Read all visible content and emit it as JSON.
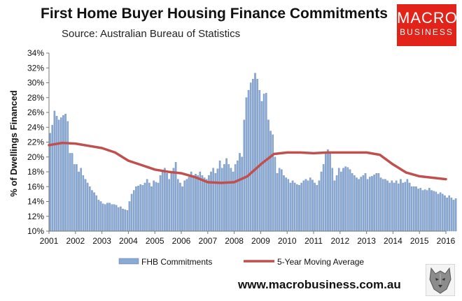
{
  "header": {
    "title": "First Home Buyer Housing Finance Commitments",
    "subtitle": "Source: Australian Bureau of Statistics"
  },
  "logo": {
    "line1": "MACRO",
    "line2": "BUSINESS"
  },
  "footer": {
    "url": "www.macrobusiness.com.au"
  },
  "colors": {
    "bar": "#8aa9d3",
    "bar_edge": "#5b7fb0",
    "line": "#c0504d",
    "logo_bg": "#e2231a"
  },
  "icons": {
    "mascot": "wolf-icon"
  },
  "chart_data": {
    "type": "bar",
    "title": "First Home Buyer Housing Finance Commitments",
    "ylabel": "% of Dwellings Financed",
    "ylim": [
      10,
      34
    ],
    "yticks": [
      "10%",
      "12%",
      "14%",
      "16%",
      "18%",
      "20%",
      "22%",
      "24%",
      "26%",
      "28%",
      "30%",
      "32%",
      "34%"
    ],
    "xticks": [
      "2001",
      "2002",
      "2003",
      "2004",
      "2005",
      "2006",
      "2007",
      "2008",
      "2009",
      "2010",
      "2011",
      "2012",
      "2013",
      "2014",
      "2015",
      "2016"
    ],
    "legend": {
      "placement": "bottom"
    },
    "series": [
      {
        "name": "FHB Commitments",
        "type": "bar",
        "frequency": "monthly",
        "start": "2001-01",
        "values": [
          23.2,
          24.3,
          26.2,
          25.5,
          25.0,
          25.3,
          25.6,
          25.8,
          24.8,
          20.5,
          20.5,
          19.0,
          19.0,
          18.0,
          18.5,
          17.5,
          17.0,
          16.5,
          16.0,
          15.5,
          15.2,
          14.8,
          14.2,
          14.0,
          13.7,
          13.6,
          13.8,
          13.8,
          13.6,
          13.6,
          13.5,
          13.2,
          13.3,
          13.0,
          12.9,
          12.8,
          14.0,
          15.0,
          15.5,
          16.0,
          16.1,
          16.3,
          16.2,
          16.5,
          17.0,
          16.5,
          16.0,
          16.8,
          16.6,
          16.5,
          17.5,
          18.0,
          18.5,
          17.8,
          17.0,
          18.0,
          18.5,
          19.3,
          17.0,
          16.5,
          16.0,
          16.8,
          17.0,
          17.3,
          18.0,
          17.5,
          17.7,
          17.5,
          18.0,
          17.5,
          17.2,
          17.0,
          17.5,
          18.0,
          18.5,
          17.8,
          18.4,
          19.5,
          18.5,
          19.0,
          19.8,
          19.0,
          18.5,
          18.0,
          19.0,
          19.5,
          20.5,
          20.0,
          25.0,
          28.0,
          29.0,
          30.0,
          30.5,
          31.3,
          30.5,
          29.0,
          27.5,
          28.5,
          28.6,
          25.0,
          23.5,
          23.0,
          20.0,
          17.8,
          18.5,
          18.3,
          17.5,
          17.2,
          17.0,
          16.5,
          16.8,
          16.5,
          16.3,
          16.2,
          16.5,
          16.8,
          17.0,
          16.8,
          17.2,
          16.9,
          16.5,
          16.2,
          16.8,
          18.0,
          19.0,
          20.5,
          21.0,
          20.5,
          18.5,
          16.8,
          17.5,
          18.5,
          18.0,
          18.5,
          18.7,
          18.6,
          18.3,
          17.8,
          17.5,
          17.2,
          17.0,
          17.3,
          17.5,
          17.8,
          17.0,
          17.3,
          17.4,
          17.6,
          17.8,
          17.8,
          17.2,
          17.0,
          17.0,
          16.8,
          16.5,
          16.8,
          16.5,
          16.8,
          16.4,
          17.0,
          16.5,
          16.6,
          17.0,
          16.5,
          16.0,
          16.0,
          16.0,
          15.7,
          15.8,
          15.5,
          15.6,
          15.5,
          15.8,
          15.5,
          15.4,
          15.3,
          15.0,
          15.2,
          15.0,
          14.8,
          14.5,
          14.8,
          14.5,
          14.2,
          14.4
        ]
      },
      {
        "name": "5-Year Moving Average",
        "type": "line",
        "points": [
          [
            2001.0,
            21.6
          ],
          [
            2001.5,
            21.9
          ],
          [
            2002.0,
            21.8
          ],
          [
            2002.5,
            21.5
          ],
          [
            2003.0,
            21.2
          ],
          [
            2003.5,
            20.6
          ],
          [
            2004.0,
            19.5
          ],
          [
            2004.5,
            18.9
          ],
          [
            2005.0,
            18.3
          ],
          [
            2005.5,
            18.0
          ],
          [
            2006.0,
            17.8
          ],
          [
            2006.5,
            17.3
          ],
          [
            2007.0,
            16.6
          ],
          [
            2007.5,
            16.5
          ],
          [
            2008.0,
            16.6
          ],
          [
            2008.5,
            17.4
          ],
          [
            2009.0,
            19.0
          ],
          [
            2009.5,
            20.4
          ],
          [
            2010.0,
            20.6
          ],
          [
            2010.5,
            20.6
          ],
          [
            2011.0,
            20.5
          ],
          [
            2011.5,
            20.6
          ],
          [
            2012.0,
            20.6
          ],
          [
            2012.5,
            20.6
          ],
          [
            2013.0,
            20.6
          ],
          [
            2013.5,
            20.3
          ],
          [
            2014.0,
            19.0
          ],
          [
            2014.5,
            17.9
          ],
          [
            2015.0,
            17.4
          ],
          [
            2015.5,
            17.2
          ],
          [
            2016.0,
            17.0
          ]
        ]
      }
    ]
  }
}
